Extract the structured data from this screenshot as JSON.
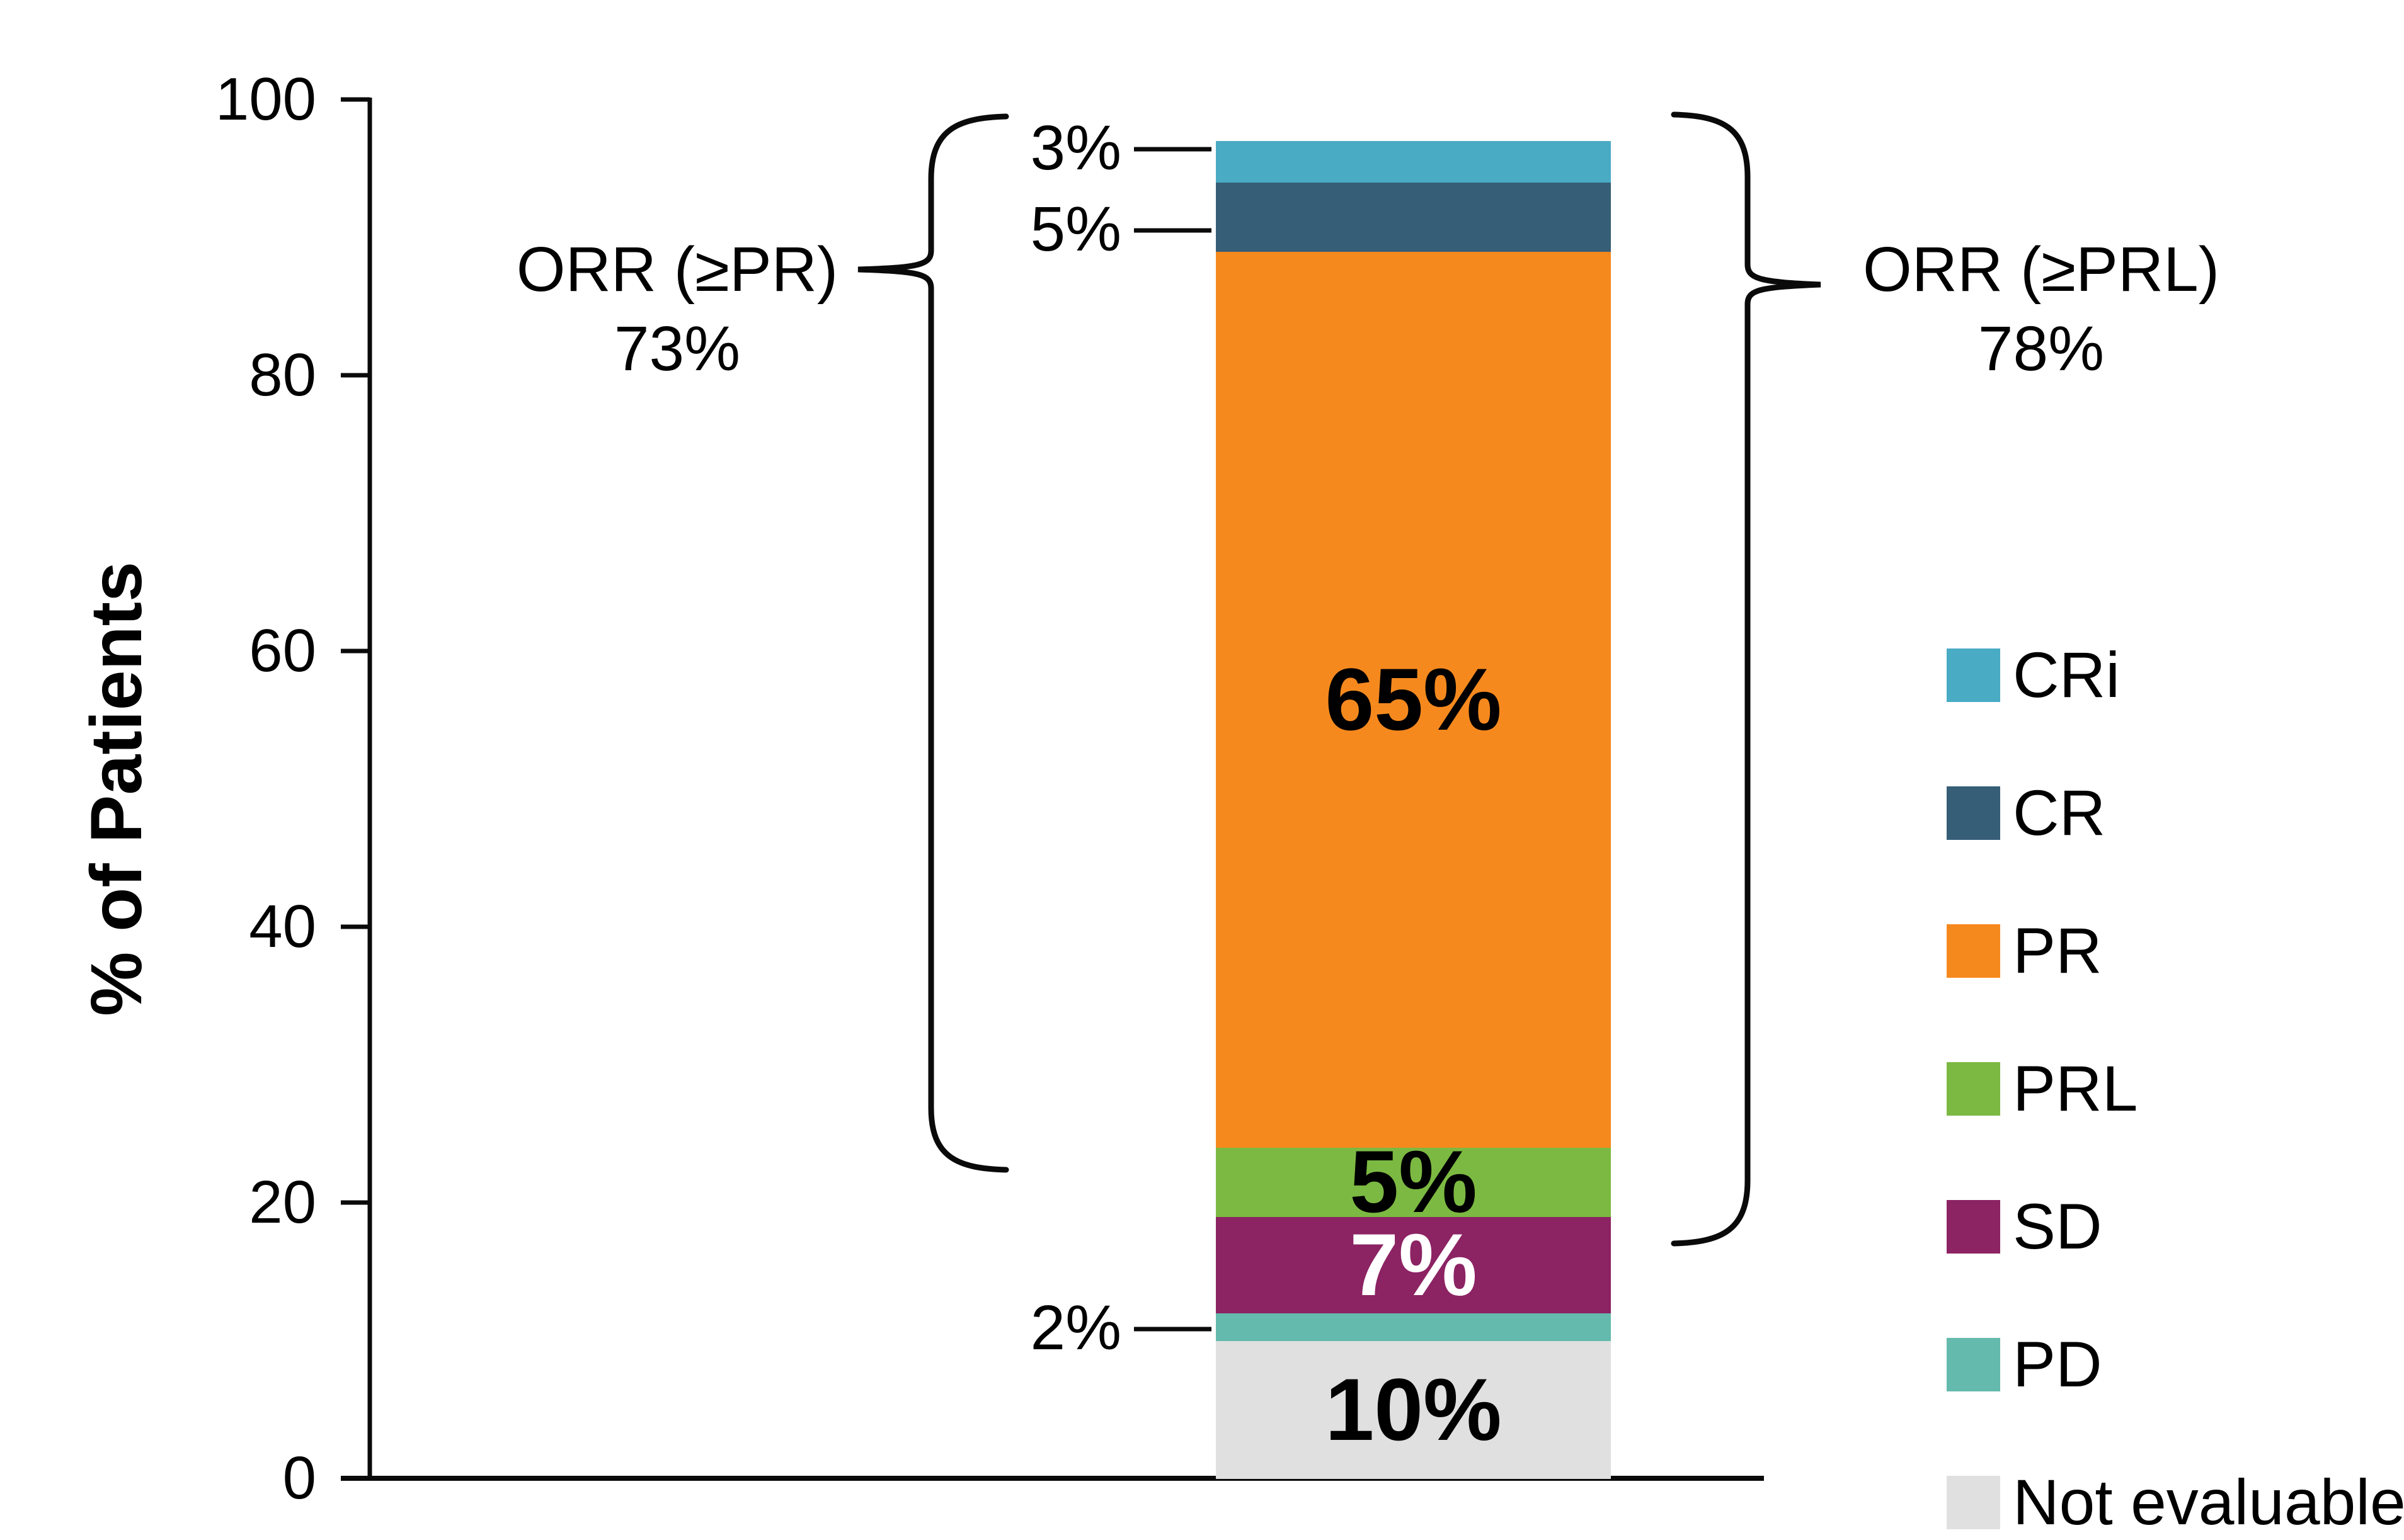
{
  "figure": {
    "background_color": "#FFFFFF",
    "text_color": "#000000",
    "line_color": "#0A0A0A"
  },
  "chart_data": {
    "type": "bar",
    "subtype": "stacked-single-column",
    "title": "",
    "xlabel": "",
    "ylabel": "% of Patients",
    "ylim": [
      0,
      100
    ],
    "yticks": [
      0,
      20,
      40,
      60,
      80,
      100
    ],
    "grid": false,
    "legend_position": "right",
    "bar": {
      "total_height_pct": 97,
      "segments_bottom_to_top": [
        {
          "name": "Not evaluable",
          "value": 10,
          "label": "10%",
          "color": "#DFE0DF",
          "label_color": "#000000",
          "label_placement": "inside"
        },
        {
          "name": "PD",
          "value": 2,
          "label": "2%",
          "color": "#64BAAC",
          "label_color": "#000000",
          "label_placement": "outside-left"
        },
        {
          "name": "SD",
          "value": 7,
          "label": "7%",
          "color": "#8C2363",
          "label_color": "#FFFFFF",
          "label_placement": "inside"
        },
        {
          "name": "PRL",
          "value": 5,
          "label": "5%",
          "color": "#7CB942",
          "label_color": "#000000",
          "label_placement": "inside"
        },
        {
          "name": "PR",
          "value": 65,
          "label": "65%",
          "color": "#F6891E",
          "label_color": "#000000",
          "label_placement": "inside"
        },
        {
          "name": "CR",
          "value": 5,
          "label": "5%",
          "color": "#365E77",
          "label_color": "#000000",
          "label_placement": "outside-left"
        },
        {
          "name": "CRi",
          "value": 3,
          "label": "3%",
          "color": "#49ABC4",
          "label_color": "#000000",
          "label_placement": "outside-left"
        }
      ]
    },
    "annotations": [
      {
        "id": "orr-pr",
        "side": "left",
        "text_line1": "ORR (≥PR)",
        "text_line2": "73%"
      },
      {
        "id": "orr-prl",
        "side": "right",
        "text_line1": "ORR (≥PRL)",
        "text_line2": "78%"
      }
    ],
    "legend": [
      {
        "label": "CRi",
        "color": "#49ABC4"
      },
      {
        "label": "CR",
        "color": "#365E77"
      },
      {
        "label": "PR",
        "color": "#F6891E"
      },
      {
        "label": "PRL",
        "color": "#7CB942"
      },
      {
        "label": "SD",
        "color": "#8C2363"
      },
      {
        "label": "PD",
        "color": "#64BAAC"
      },
      {
        "label": "Not evaluable",
        "color": "#DFE0DF"
      }
    ]
  }
}
